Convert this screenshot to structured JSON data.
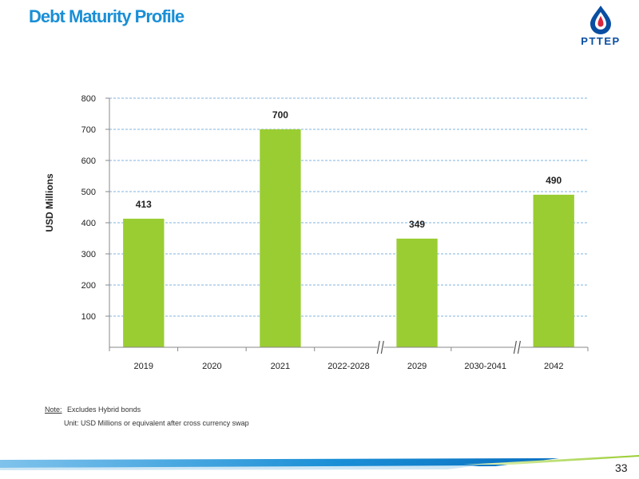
{
  "slide": {
    "title": "Debt Maturity Profile",
    "logo_text": "PTTEP",
    "page_number": "33",
    "note_label": "Note:",
    "note_text": "Excludes Hybrid bonds",
    "note_line2": "Unit: USD Millions or equivalent after cross currency swap"
  },
  "colors": {
    "bar": "#9acd32",
    "title": "#1a8fd6",
    "grid": "#7fb3e0",
    "logo_blue": "#0a4ea2",
    "logo_red": "#d7263d"
  },
  "chart_data": {
    "type": "bar",
    "title": "",
    "xlabel": "",
    "ylabel": "USD Millions",
    "ylim": [
      0,
      800
    ],
    "yticks": [
      "100",
      "200",
      "300",
      "400",
      "500",
      "600",
      "700",
      "800"
    ],
    "categories": [
      "2019",
      "2020",
      "2021",
      "2022-2028",
      "2029",
      "2030-2041",
      "2042"
    ],
    "values": [
      413,
      null,
      700,
      null,
      349,
      null,
      490
    ],
    "data_labels": [
      "413",
      "",
      "700",
      "",
      "349",
      "",
      "490"
    ],
    "axis_breaks_after": [
      "2022-2028",
      "2030-2041"
    ],
    "grid": true,
    "grid_style": "dashed",
    "legend": "none"
  }
}
